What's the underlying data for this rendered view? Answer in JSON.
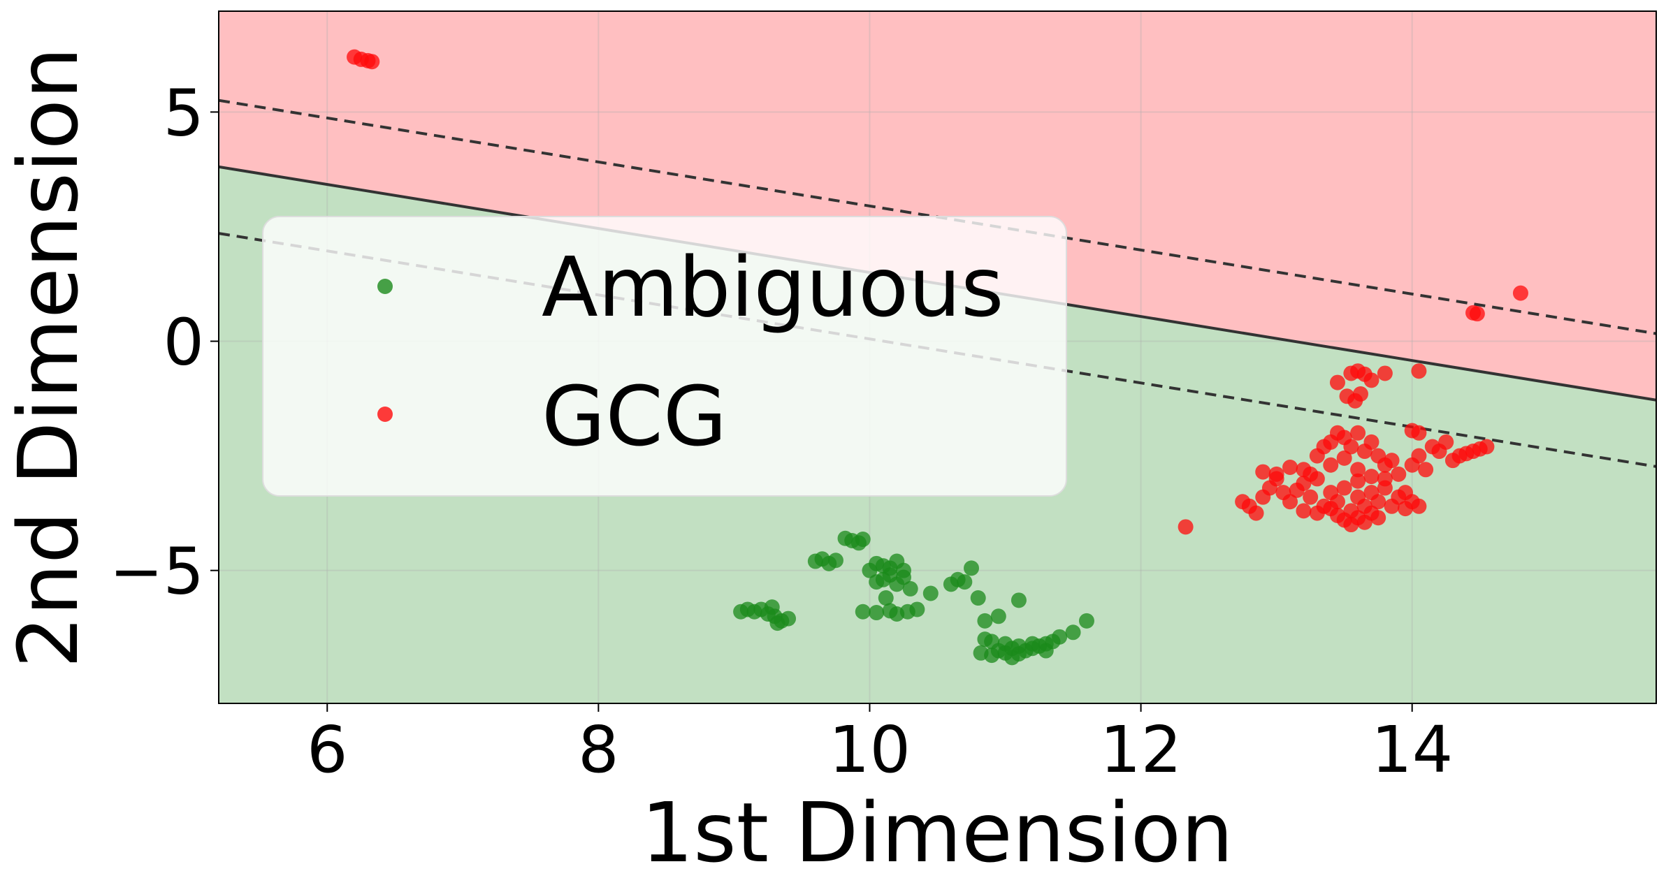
{
  "chart_data": {
    "type": "scatter",
    "title": "",
    "xlabel": "1st Dimension",
    "ylabel": "2nd Dimension",
    "xlim": [
      5.2,
      15.8
    ],
    "ylim": [
      -7.9,
      7.2
    ],
    "xticks": [
      6,
      8,
      10,
      12,
      14
    ],
    "yticks": [
      5,
      0,
      -5
    ],
    "ytick_labels": [
      "5",
      "0",
      "−5"
    ],
    "grid": true,
    "legend_placement": "upper-left",
    "decision_boundary": {
      "slope": -0.48,
      "intercept": 6.3,
      "margin_intercept_offset": 1.45
    },
    "region_colors": {
      "ambiguous": "#c2e0c2",
      "gcg": "#ffbfc1"
    },
    "series": [
      {
        "name": "Ambiguous",
        "color": "#1a8a1a",
        "points": [
          [
            9.05,
            -5.9
          ],
          [
            9.1,
            -5.85
          ],
          [
            9.15,
            -5.9
          ],
          [
            9.2,
            -5.85
          ],
          [
            9.25,
            -5.95
          ],
          [
            9.3,
            -6.0
          ],
          [
            9.35,
            -6.1
          ],
          [
            9.28,
            -5.8
          ],
          [
            9.4,
            -6.05
          ],
          [
            9.32,
            -6.15
          ],
          [
            9.6,
            -4.8
          ],
          [
            9.65,
            -4.75
          ],
          [
            9.7,
            -4.85
          ],
          [
            9.75,
            -4.78
          ],
          [
            9.82,
            -4.3
          ],
          [
            9.87,
            -4.35
          ],
          [
            9.92,
            -4.4
          ],
          [
            9.95,
            -4.32
          ],
          [
            10.0,
            -5.0
          ],
          [
            10.05,
            -4.85
          ],
          [
            10.1,
            -4.9
          ],
          [
            10.15,
            -5.1
          ],
          [
            10.2,
            -4.8
          ],
          [
            10.25,
            -5.0
          ],
          [
            10.1,
            -5.2
          ],
          [
            10.2,
            -5.3
          ],
          [
            10.3,
            -5.4
          ],
          [
            10.05,
            -5.25
          ],
          [
            10.15,
            -4.95
          ],
          [
            10.25,
            -5.15
          ],
          [
            9.95,
            -5.9
          ],
          [
            10.05,
            -5.92
          ],
          [
            10.15,
            -5.88
          ],
          [
            10.2,
            -5.95
          ],
          [
            10.28,
            -5.9
          ],
          [
            10.35,
            -5.85
          ],
          [
            10.12,
            -5.6
          ],
          [
            10.45,
            -5.5
          ],
          [
            10.6,
            -5.3
          ],
          [
            10.65,
            -5.2
          ],
          [
            10.7,
            -5.25
          ],
          [
            10.75,
            -4.95
          ],
          [
            10.8,
            -5.6
          ],
          [
            10.85,
            -6.1
          ],
          [
            10.95,
            -6.0
          ],
          [
            11.1,
            -5.65
          ],
          [
            10.82,
            -6.8
          ],
          [
            10.9,
            -6.85
          ],
          [
            10.95,
            -6.75
          ],
          [
            11.0,
            -6.8
          ],
          [
            11.05,
            -6.7
          ],
          [
            11.1,
            -6.82
          ],
          [
            11.15,
            -6.75
          ],
          [
            11.2,
            -6.7
          ],
          [
            11.25,
            -6.65
          ],
          [
            11.3,
            -6.6
          ],
          [
            11.35,
            -6.55
          ],
          [
            11.4,
            -6.45
          ],
          [
            11.5,
            -6.35
          ],
          [
            11.6,
            -6.1
          ],
          [
            10.9,
            -6.55
          ],
          [
            11.0,
            -6.6
          ],
          [
            11.1,
            -6.65
          ],
          [
            11.2,
            -6.6
          ],
          [
            10.85,
            -6.5
          ],
          [
            11.3,
            -6.75
          ],
          [
            11.05,
            -6.9
          ]
        ]
      },
      {
        "name": "GCG",
        "color": "#ff0a0a",
        "points": [
          [
            6.2,
            6.2
          ],
          [
            6.25,
            6.15
          ],
          [
            6.3,
            6.12
          ],
          [
            6.33,
            6.1
          ],
          [
            12.33,
            -4.05
          ],
          [
            14.45,
            0.62
          ],
          [
            14.48,
            0.6
          ],
          [
            14.8,
            1.05
          ],
          [
            13.55,
            -0.7
          ],
          [
            13.6,
            -0.65
          ],
          [
            13.65,
            -0.72
          ],
          [
            13.45,
            -0.9
          ],
          [
            13.7,
            -0.85
          ],
          [
            13.8,
            -0.7
          ],
          [
            14.05,
            -0.65
          ],
          [
            13.52,
            -1.2
          ],
          [
            13.62,
            -1.15
          ],
          [
            13.58,
            -1.3
          ],
          [
            12.75,
            -3.5
          ],
          [
            12.8,
            -3.6
          ],
          [
            12.9,
            -3.4
          ],
          [
            12.95,
            -3.2
          ],
          [
            13.0,
            -3.0
          ],
          [
            13.05,
            -3.3
          ],
          [
            13.1,
            -3.5
          ],
          [
            13.15,
            -3.25
          ],
          [
            13.2,
            -3.1
          ],
          [
            13.25,
            -3.4
          ],
          [
            13.3,
            -3.0
          ],
          [
            13.35,
            -3.6
          ],
          [
            13.4,
            -3.3
          ],
          [
            13.45,
            -3.5
          ],
          [
            13.5,
            -3.2
          ],
          [
            13.55,
            -3.7
          ],
          [
            13.6,
            -3.4
          ],
          [
            13.65,
            -3.6
          ],
          [
            13.7,
            -3.3
          ],
          [
            13.75,
            -3.5
          ],
          [
            13.8,
            -3.2
          ],
          [
            13.85,
            -3.6
          ],
          [
            13.9,
            -3.4
          ],
          [
            13.95,
            -3.3
          ],
          [
            13.5,
            -3.9
          ],
          [
            13.55,
            -4.0
          ],
          [
            13.6,
            -3.85
          ],
          [
            13.65,
            -3.95
          ],
          [
            13.45,
            -3.8
          ],
          [
            13.7,
            -3.75
          ],
          [
            13.75,
            -3.85
          ],
          [
            13.3,
            -2.5
          ],
          [
            13.35,
            -2.3
          ],
          [
            13.4,
            -2.2
          ],
          [
            13.45,
            -2.0
          ],
          [
            13.5,
            -2.1
          ],
          [
            13.55,
            -2.3
          ],
          [
            13.6,
            -2.0
          ],
          [
            13.65,
            -2.4
          ],
          [
            13.7,
            -2.2
          ],
          [
            13.75,
            -2.5
          ],
          [
            13.8,
            -2.7
          ],
          [
            13.85,
            -2.6
          ],
          [
            13.2,
            -2.8
          ],
          [
            13.25,
            -2.9
          ],
          [
            13.4,
            -2.7
          ],
          [
            13.6,
            -2.8
          ],
          [
            13.9,
            -2.9
          ],
          [
            14.0,
            -2.7
          ],
          [
            14.05,
            -2.5
          ],
          [
            14.1,
            -2.8
          ],
          [
            14.15,
            -2.3
          ],
          [
            14.2,
            -2.4
          ],
          [
            14.25,
            -2.2
          ],
          [
            14.3,
            -2.6
          ],
          [
            14.35,
            -2.5
          ],
          [
            14.4,
            -2.45
          ],
          [
            14.45,
            -2.4
          ],
          [
            14.5,
            -2.35
          ],
          [
            14.55,
            -2.3
          ],
          [
            13.0,
            -2.9
          ],
          [
            12.9,
            -2.85
          ],
          [
            13.1,
            -2.75
          ],
          [
            13.95,
            -3.65
          ],
          [
            14.0,
            -3.5
          ],
          [
            14.05,
            -3.6
          ],
          [
            14.0,
            -1.95
          ],
          [
            14.05,
            -2.0
          ],
          [
            13.5,
            -2.55
          ],
          [
            13.6,
            -3.05
          ],
          [
            13.7,
            -2.95
          ],
          [
            13.8,
            -3.0
          ],
          [
            13.4,
            -3.65
          ],
          [
            13.3,
            -3.75
          ],
          [
            13.2,
            -3.7
          ],
          [
            12.85,
            -3.75
          ]
        ]
      }
    ]
  }
}
